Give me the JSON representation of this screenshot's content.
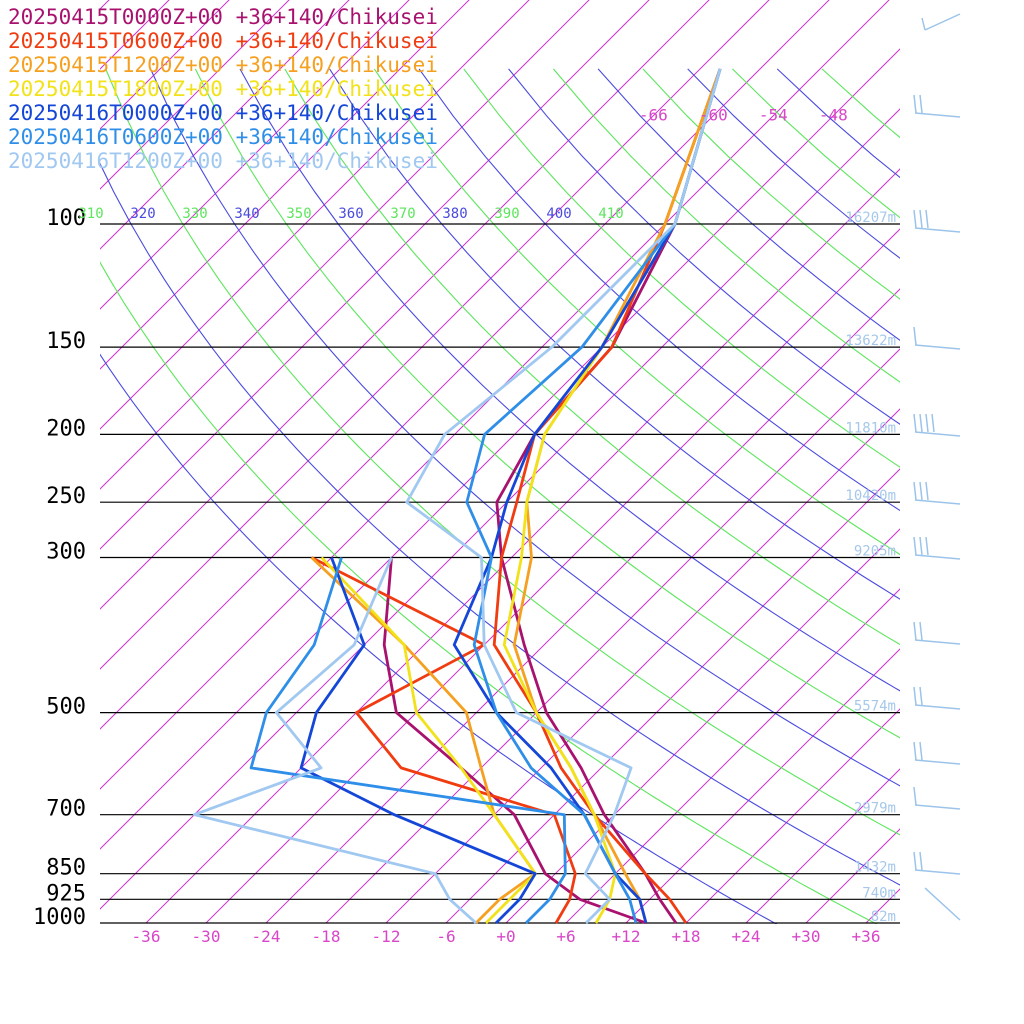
{
  "chart_data": {
    "type": "line",
    "subtype": "skew-t log-p sounding",
    "title": "",
    "location_label": "+36+140/Chikusei",
    "pressure_levels": [
      100,
      150,
      200,
      250,
      300,
      500,
      700,
      850,
      925,
      1000
    ],
    "pressure_level_labels": [
      "100",
      "150",
      "200",
      "250",
      "300",
      "500",
      "700",
      "850",
      "925",
      "1000"
    ],
    "heights": [
      "16207m",
      "13622m",
      "11810m",
      "10420m",
      "9205m",
      "5574m",
      "2979m",
      "1432m",
      "740m",
      "82m"
    ],
    "temperature_ticks": [
      "-36",
      "-30",
      "-24",
      "-18",
      "-12",
      "-6",
      "+0",
      "+6",
      "+12",
      "+18",
      "+24",
      "+30",
      "+36"
    ],
    "top_temperature_labels": [
      "-66",
      "-60",
      "-54",
      "-48"
    ],
    "theta_labels": [
      "310",
      "320",
      "330",
      "340",
      "350",
      "360",
      "370",
      "380",
      "390",
      "400",
      "410"
    ],
    "theta_colors": [
      "#4a4adf",
      "#5ce65c"
    ],
    "isotherm_color": "#cc33cc",
    "grid": true,
    "legend_position": "top-left",
    "series": [
      {
        "name": "20250415T0000Z+00 +36+140/Chikusei",
        "color": "#a8126e",
        "temperature": [
          [
            60,
            -64
          ],
          [
            100,
            -53
          ],
          [
            150,
            -47
          ],
          [
            200,
            -46
          ],
          [
            250,
            -43
          ],
          [
            300,
            -37
          ],
          [
            400,
            -26
          ],
          [
            500,
            -17
          ],
          [
            600,
            -8
          ],
          [
            700,
            -1
          ],
          [
            850,
            9
          ],
          [
            925,
            13
          ],
          [
            1000,
            17
          ]
        ],
        "dewpoint": [
          [
            300,
            -48
          ],
          [
            400,
            -40
          ],
          [
            500,
            -32
          ],
          [
            600,
            -20
          ],
          [
            700,
            -10
          ],
          [
            850,
            -1
          ],
          [
            925,
            5
          ],
          [
            1000,
            14
          ]
        ]
      },
      {
        "name": "20250415T0600Z+00 +36+140/Chikusei",
        "color": "#f03c10",
        "temperature": [
          [
            60,
            -64
          ],
          [
            100,
            -54
          ],
          [
            150,
            -47
          ],
          [
            200,
            -46
          ],
          [
            250,
            -41
          ],
          [
            300,
            -37
          ],
          [
            400,
            -29
          ],
          [
            500,
            -18
          ],
          [
            600,
            -10
          ],
          [
            700,
            -2
          ],
          [
            850,
            9
          ],
          [
            925,
            14
          ],
          [
            1000,
            18
          ]
        ],
        "dewpoint": [
          [
            300,
            -56
          ],
          [
            400,
            -30
          ],
          [
            500,
            -36
          ],
          [
            600,
            -26
          ],
          [
            700,
            -6
          ],
          [
            850,
            2
          ],
          [
            925,
            4
          ],
          [
            1000,
            5
          ]
        ]
      },
      {
        "name": "20250415T1200Z+00 +36+140/Chikusei",
        "color": "#f5a020",
        "temperature": [
          [
            60,
            -64
          ],
          [
            100,
            -54
          ],
          [
            150,
            -48
          ],
          [
            200,
            -45
          ],
          [
            250,
            -40
          ],
          [
            300,
            -34
          ],
          [
            400,
            -27
          ],
          [
            500,
            -18
          ],
          [
            600,
            -9
          ],
          [
            700,
            -2
          ],
          [
            850,
            7
          ],
          [
            925,
            11
          ],
          [
            1000,
            14
          ]
        ],
        "dewpoint": [
          [
            300,
            -56
          ],
          [
            400,
            -38
          ],
          [
            500,
            -25
          ],
          [
            600,
            -18
          ],
          [
            700,
            -12
          ],
          [
            850,
            -2
          ],
          [
            925,
            -3
          ],
          [
            1000,
            -3
          ]
        ]
      },
      {
        "name": "20250415T1800Z+00 +36+140/Chikusei",
        "color": "#f2e21a",
        "temperature": [
          [
            60,
            -64
          ],
          [
            100,
            -53
          ],
          [
            150,
            -48
          ],
          [
            200,
            -45
          ],
          [
            250,
            -40
          ],
          [
            300,
            -35
          ],
          [
            400,
            -28
          ],
          [
            500,
            -18
          ],
          [
            600,
            -9
          ],
          [
            700,
            -2
          ],
          [
            850,
            6
          ],
          [
            925,
            8
          ],
          [
            1000,
            9
          ]
        ],
        "dewpoint": [
          [
            300,
            -55
          ],
          [
            400,
            -38
          ],
          [
            500,
            -30
          ],
          [
            600,
            -20
          ],
          [
            700,
            -12
          ],
          [
            850,
            -2
          ],
          [
            925,
            -2
          ],
          [
            1000,
            -2
          ]
        ]
      },
      {
        "name": "20250416T0000Z+00 +36+140/Chikusei",
        "color": "#1446d8",
        "temperature": [
          [
            60,
            -64
          ],
          [
            100,
            -53
          ],
          [
            150,
            -48
          ],
          [
            200,
            -46
          ],
          [
            250,
            -42
          ],
          [
            300,
            -38
          ],
          [
            400,
            -33
          ],
          [
            500,
            -22
          ],
          [
            600,
            -11
          ],
          [
            700,
            -3
          ],
          [
            850,
            6
          ],
          [
            925,
            11
          ],
          [
            1000,
            14
          ]
        ],
        "dewpoint": [
          [
            300,
            -54
          ],
          [
            400,
            -42
          ],
          [
            500,
            -40
          ],
          [
            600,
            -36
          ],
          [
            700,
            -22
          ],
          [
            850,
            -2
          ],
          [
            925,
            -1
          ],
          [
            1000,
            -1
          ]
        ]
      },
      {
        "name": "20250416T0600Z+00 +36+140/Chikusei",
        "color": "#2e8ee8",
        "temperature": [
          [
            60,
            -64
          ],
          [
            100,
            -53
          ],
          [
            150,
            -50
          ],
          [
            200,
            -51
          ],
          [
            250,
            -46
          ],
          [
            300,
            -38
          ],
          [
            400,
            -31
          ],
          [
            500,
            -22
          ],
          [
            600,
            -13
          ],
          [
            700,
            -3
          ],
          [
            850,
            6
          ],
          [
            925,
            10
          ],
          [
            1000,
            13
          ]
        ],
        "dewpoint": [
          [
            300,
            -53
          ],
          [
            400,
            -47
          ],
          [
            500,
            -45
          ],
          [
            600,
            -41
          ],
          [
            700,
            -5
          ],
          [
            850,
            1
          ],
          [
            925,
            2
          ],
          [
            1000,
            2
          ]
        ]
      },
      {
        "name": "20250416T1200Z+00 +36+140/Chikusei",
        "color": "#a0c8f0",
        "temperature": [
          [
            60,
            -64
          ],
          [
            100,
            -53
          ],
          [
            150,
            -53
          ],
          [
            200,
            -55
          ],
          [
            250,
            -52
          ],
          [
            300,
            -39
          ],
          [
            400,
            -30
          ],
          [
            500,
            -20
          ],
          [
            600,
            -3
          ],
          [
            700,
            0
          ],
          [
            850,
            3
          ],
          [
            925,
            8
          ],
          [
            1000,
            8
          ]
        ],
        "dewpoint": [
          [
            300,
            -48
          ],
          [
            400,
            -43
          ],
          [
            500,
            -44
          ],
          [
            600,
            -34
          ],
          [
            700,
            -42
          ],
          [
            850,
            -12
          ],
          [
            925,
            -8
          ],
          [
            1000,
            -3
          ]
        ]
      }
    ]
  }
}
